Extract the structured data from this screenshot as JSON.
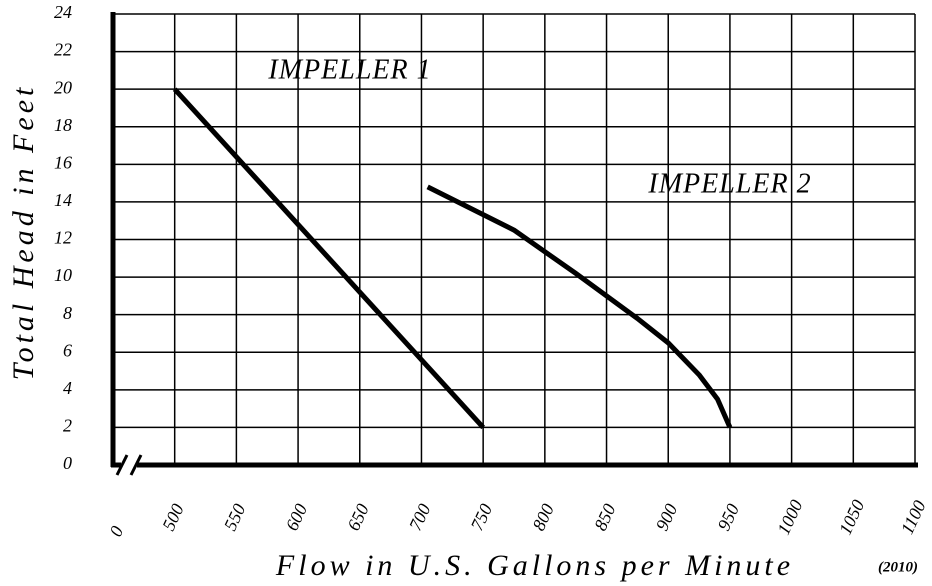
{
  "chart_data": {
    "type": "line",
    "xlabel": "Flow in U.S. Gallons per Minute",
    "ylabel": "Total Head in Feet",
    "note": "(2010)",
    "x_break_label": "0",
    "xlim": [
      450,
      1100
    ],
    "xticks": [
      500,
      550,
      600,
      650,
      700,
      750,
      800,
      850,
      900,
      950,
      1000,
      1050,
      1100
    ],
    "ylim": [
      0,
      24
    ],
    "yticks": [
      0,
      2,
      4,
      6,
      8,
      10,
      12,
      14,
      16,
      18,
      20,
      22,
      24
    ],
    "grid": true,
    "series": [
      {
        "name": "IMPELLER 1",
        "color": "#000000",
        "x": [
          500,
          750
        ],
        "values": [
          20,
          2
        ]
      },
      {
        "name": "IMPELLER 2",
        "color": "#000000",
        "x": [
          705,
          775,
          825,
          875,
          900,
          925,
          940,
          950
        ],
        "values": [
          14.8,
          12.5,
          10.2,
          7.8,
          6.5,
          4.8,
          3.5,
          2
        ]
      }
    ]
  }
}
